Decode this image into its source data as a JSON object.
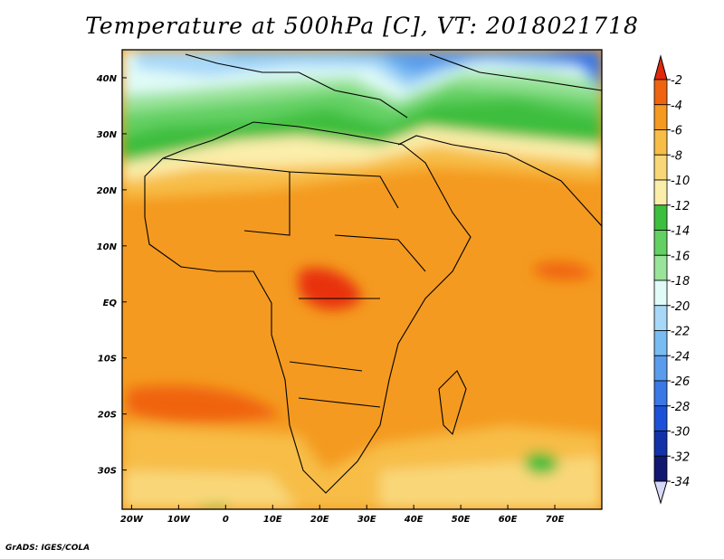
{
  "title": "Temperature at 500hPa [C], VT: 2018021718",
  "credit": "GrADS: IGES/COLA",
  "axes": {
    "lon_ticks": [
      {
        "label": "20W",
        "lon": -20
      },
      {
        "label": "10W",
        "lon": -10
      },
      {
        "label": "0",
        "lon": 0
      },
      {
        "label": "10E",
        "lon": 10
      },
      {
        "label": "20E",
        "lon": 20
      },
      {
        "label": "30E",
        "lon": 30
      },
      {
        "label": "40E",
        "lon": 40
      },
      {
        "label": "50E",
        "lon": 50
      },
      {
        "label": "60E",
        "lon": 60
      },
      {
        "label": "70E",
        "lon": 70
      }
    ],
    "lat_ticks": [
      {
        "label": "40N",
        "lat": 40
      },
      {
        "label": "30N",
        "lat": 30
      },
      {
        "label": "20N",
        "lat": 20
      },
      {
        "label": "10N",
        "lat": 10
      },
      {
        "label": "EQ",
        "lat": 0
      },
      {
        "label": "10S",
        "lat": -10
      },
      {
        "label": "20S",
        "lat": -20
      },
      {
        "label": "30S",
        "lat": -30
      }
    ],
    "lon_range": [
      -22,
      80
    ],
    "lat_range": [
      -37,
      45
    ]
  },
  "colorbar": {
    "labels": [
      "-2",
      "-4",
      "-6",
      "-8",
      "-10",
      "-12",
      "-14",
      "-16",
      "-18",
      "-20",
      "-22",
      "-24",
      "-26",
      "-28",
      "-30",
      "-32",
      "-34"
    ],
    "colors": [
      "#e8320a",
      "#f06410",
      "#f49a20",
      "#f7bd46",
      "#f9d778",
      "#fbeeaa",
      "#3ebe3e",
      "#62d062",
      "#9ae39a",
      "#e0fbf8",
      "#a8d8f8",
      "#78bcf2",
      "#5a9cec",
      "#3a78e6",
      "#1c50d8",
      "#1232a8",
      "#101870"
    ],
    "top_color": "#e02a0a",
    "bottom_color": "#d8d8f8"
  }
}
